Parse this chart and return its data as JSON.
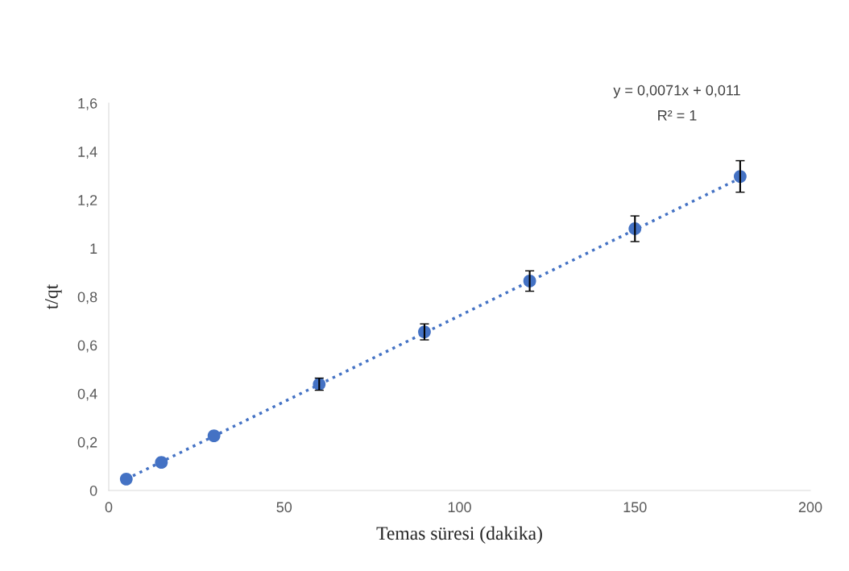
{
  "chart_data": {
    "type": "scatter",
    "xlabel": "Temas süresi (dakika)",
    "ylabel": "t/qt",
    "series": [
      {
        "color": "#4472c4",
        "marker": "circle",
        "x": [
          5,
          15,
          30,
          60,
          90,
          120,
          150,
          180
        ],
        "values": [
          0.047,
          0.116,
          0.226,
          0.439,
          0.655,
          0.865,
          1.081,
          1.297
        ],
        "errors": [
          null,
          null,
          null,
          0.025,
          0.033,
          0.042,
          0.053,
          0.065
        ]
      },
      {
        "type": "line",
        "color": "#4472c4",
        "line_style": "dotted",
        "x": [
          5,
          180
        ],
        "values": [
          0.047,
          1.29
        ]
      }
    ],
    "annotations": [
      "y = 0,0071x + 0,011",
      "R² = 1"
    ],
    "xlim": [
      0,
      200
    ],
    "xticks": [
      0,
      50,
      100,
      150,
      200
    ],
    "ylim": [
      0,
      1.6
    ],
    "yticks": [
      {
        "value": 0,
        "label": "0"
      },
      {
        "value": 0.2,
        "label": "0,2"
      },
      {
        "value": 0.4,
        "label": "0,4"
      },
      {
        "value": 0.6,
        "label": "0,6"
      },
      {
        "value": 0.8,
        "label": "0,8"
      },
      {
        "value": 1,
        "label": "1"
      },
      {
        "value": 1.2,
        "label": "1,2"
      },
      {
        "value": 1.4,
        "label": "1,4"
      },
      {
        "value": 1.6,
        "label": "1,6"
      }
    ],
    "grid": false
  }
}
